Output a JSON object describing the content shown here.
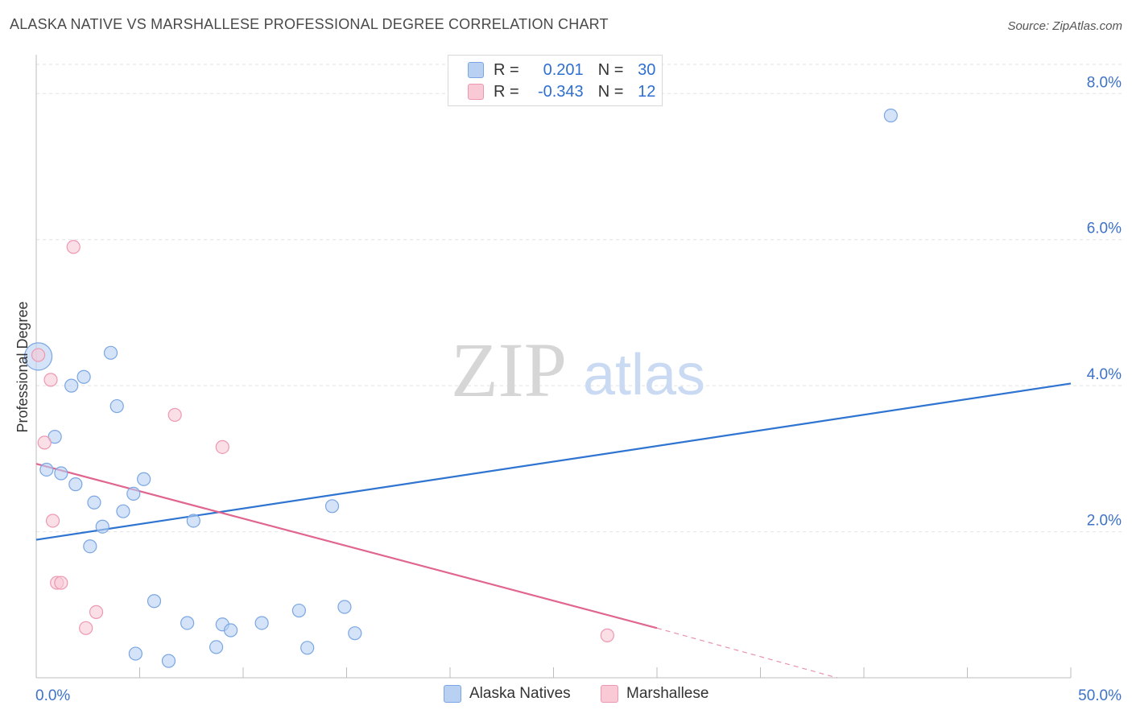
{
  "title": "ALASKA NATIVE VS MARSHALLESE PROFESSIONAL DEGREE CORRELATION CHART",
  "source": "Source: ZipAtlas.com",
  "watermark": {
    "zip": "ZIP",
    "atlas": "atlas"
  },
  "legend": {
    "rows": [
      {
        "r_label": "R =",
        "r_value": "0.201",
        "n_label": "N =",
        "n_value": "30"
      },
      {
        "r_label": "R =",
        "r_value": "-0.343",
        "n_label": "N =",
        "n_value": "12"
      }
    ]
  },
  "bottom_legend": {
    "series1": "Alaska Natives",
    "series2": "Marshallese"
  },
  "colors": {
    "blue_fill": "#b8d1f3",
    "blue_stroke": "#7aa6e3",
    "blue_line": "#2e74d0",
    "pink_fill": "#f9c9d6",
    "pink_stroke": "#ee97b0",
    "pink_line": "#e0658f",
    "axis_text": "#3d72c9"
  },
  "chart_data": {
    "type": "scatter",
    "title": "ALASKA NATIVE VS MARSHALLESE PROFESSIONAL DEGREE CORRELATION CHART",
    "xlabel": "",
    "ylabel": "Professional Degree",
    "xlim": [
      0,
      50
    ],
    "ylim": [
      0,
      8.4
    ],
    "x_tick_labels": [
      "0.0%",
      "50.0%"
    ],
    "y_ticks": [
      2,
      4,
      6,
      8
    ],
    "y_tick_labels": [
      "2.0%",
      "4.0%",
      "6.0%",
      "8.0%"
    ],
    "grid": true,
    "series": [
      {
        "name": "Alaska Natives",
        "r": 0.201,
        "n": 30,
        "points": [
          {
            "x": 0.1,
            "y": 4.4,
            "big": true
          },
          {
            "x": 0.5,
            "y": 2.85
          },
          {
            "x": 0.9,
            "y": 3.3
          },
          {
            "x": 1.2,
            "y": 2.8
          },
          {
            "x": 1.7,
            "y": 4.0
          },
          {
            "x": 1.9,
            "y": 2.65
          },
          {
            "x": 2.3,
            "y": 4.12
          },
          {
            "x": 2.6,
            "y": 1.8
          },
          {
            "x": 2.8,
            "y": 2.4
          },
          {
            "x": 3.2,
            "y": 2.07
          },
          {
            "x": 3.6,
            "y": 4.45
          },
          {
            "x": 3.9,
            "y": 3.72
          },
          {
            "x": 4.2,
            "y": 2.28
          },
          {
            "x": 4.7,
            "y": 2.52
          },
          {
            "x": 5.2,
            "y": 2.72
          },
          {
            "x": 5.7,
            "y": 1.05
          },
          {
            "x": 4.8,
            "y": 0.33
          },
          {
            "x": 6.4,
            "y": 0.23
          },
          {
            "x": 7.3,
            "y": 0.75
          },
          {
            "x": 7.6,
            "y": 2.15
          },
          {
            "x": 8.7,
            "y": 0.42
          },
          {
            "x": 9.0,
            "y": 0.73
          },
          {
            "x": 9.4,
            "y": 0.65
          },
          {
            "x": 10.9,
            "y": 0.75
          },
          {
            "x": 12.7,
            "y": 0.92
          },
          {
            "x": 13.1,
            "y": 0.41
          },
          {
            "x": 14.3,
            "y": 2.35
          },
          {
            "x": 14.9,
            "y": 0.97
          },
          {
            "x": 15.4,
            "y": 0.61
          },
          {
            "x": 41.3,
            "y": 7.7
          }
        ],
        "trend": {
          "x": [
            0,
            50
          ],
          "y": [
            1.89,
            4.03
          ]
        }
      },
      {
        "name": "Marshallese",
        "r": -0.343,
        "n": 12,
        "points": [
          {
            "x": 0.1,
            "y": 4.42
          },
          {
            "x": 0.4,
            "y": 3.22
          },
          {
            "x": 0.7,
            "y": 4.08
          },
          {
            "x": 0.8,
            "y": 2.15
          },
          {
            "x": 1.0,
            "y": 1.3
          },
          {
            "x": 1.2,
            "y": 1.3
          },
          {
            "x": 1.8,
            "y": 5.9
          },
          {
            "x": 2.4,
            "y": 0.68
          },
          {
            "x": 2.9,
            "y": 0.9
          },
          {
            "x": 6.7,
            "y": 3.6
          },
          {
            "x": 9.0,
            "y": 3.16
          },
          {
            "x": 27.6,
            "y": 0.58
          }
        ],
        "trend": {
          "x": [
            0,
            30
          ],
          "y": [
            2.93,
            0.68
          ]
        },
        "trend_dashed": {
          "x": [
            30,
            38.7
          ],
          "y": [
            0.68,
            0.0
          ]
        }
      }
    ]
  }
}
